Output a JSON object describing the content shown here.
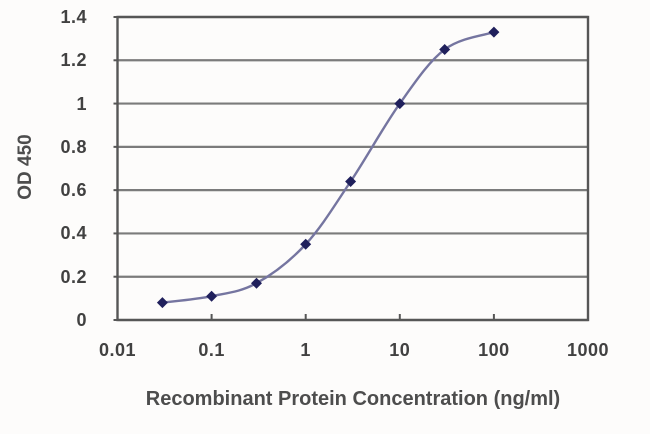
{
  "chart_data": {
    "type": "line",
    "title": "",
    "xlabel": "Recombinant Protein Concentration (ng/ml)",
    "ylabel": "OD 450",
    "x_scale": "log",
    "xlim": [
      0.01,
      1000
    ],
    "ylim": [
      0,
      1.4
    ],
    "grid": "horizontal-only",
    "legend": "none",
    "marker": "diamond",
    "x": [
      0.03,
      0.1,
      0.3,
      1,
      3,
      10,
      30,
      100
    ],
    "y": [
      0.08,
      0.11,
      0.17,
      0.35,
      0.64,
      1.0,
      1.25,
      1.33
    ],
    "xtick_labels": [
      "0.01",
      "0.1",
      "1",
      "10",
      "100",
      "1000"
    ],
    "xtick_values": [
      0.01,
      0.1,
      1,
      10,
      100,
      1000
    ],
    "ytick_labels": [
      "0",
      "0.2",
      "0.4",
      "0.6",
      "0.8",
      "1",
      "1.2",
      "1.4"
    ],
    "ytick_values": [
      0,
      0.2,
      0.4,
      0.6,
      0.8,
      1,
      1.2,
      1.4
    ],
    "colors": {
      "marker": "#20205c",
      "line": "#7575a0",
      "grid": "#7b7b7b",
      "border": "#565656",
      "tick_text": "#414141",
      "axis_text": "#4d4d4d",
      "background": "#fdfcfb"
    }
  }
}
